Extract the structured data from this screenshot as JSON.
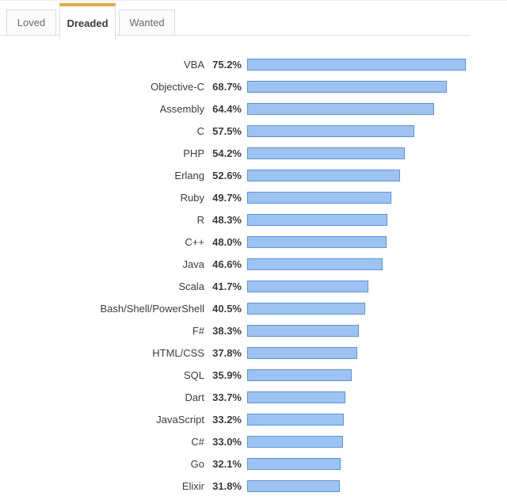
{
  "tabs": [
    {
      "label": "Loved",
      "active": false
    },
    {
      "label": "Dreaded",
      "active": true
    },
    {
      "label": "Wanted",
      "active": false
    }
  ],
  "colors": {
    "bar_fill": "#9dc3f2",
    "bar_border": "#5795e0",
    "active_tab_accent": "#efa63c"
  },
  "chart_data": {
    "type": "bar",
    "orientation": "horizontal",
    "title": "",
    "xlabel": "",
    "ylabel": "",
    "xlim": [
      0,
      100
    ],
    "grid": false,
    "legend": "none",
    "value_format": "percent",
    "categories": [
      "VBA",
      "Objective-C",
      "Assembly",
      "C",
      "PHP",
      "Erlang",
      "Ruby",
      "R",
      "C++",
      "Java",
      "Scala",
      "Bash/Shell/PowerShell",
      "F#",
      "HTML/CSS",
      "SQL",
      "Dart",
      "JavaScript",
      "C#",
      "Go",
      "Elixir"
    ],
    "values": [
      75.2,
      68.7,
      64.4,
      57.5,
      54.2,
      52.6,
      49.7,
      48.3,
      48.0,
      46.6,
      41.7,
      40.5,
      38.3,
      37.8,
      35.9,
      33.7,
      33.2,
      33.0,
      32.1,
      31.8
    ]
  }
}
